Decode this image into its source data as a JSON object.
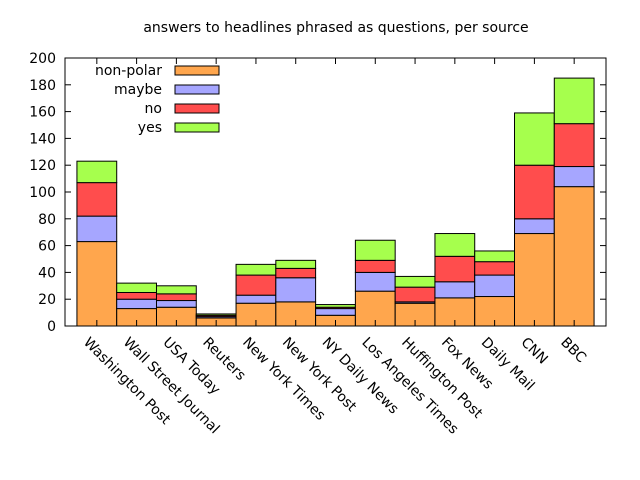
{
  "chart_data": {
    "type": "bar",
    "stacked": true,
    "title": "answers to headlines phrased as questions, per source",
    "xlabel": "",
    "ylabel": "",
    "ylim": [
      0,
      200
    ],
    "yticks": [
      0,
      20,
      40,
      60,
      80,
      100,
      120,
      140,
      160,
      180,
      200
    ],
    "grid": false,
    "legend_position": "top-left",
    "categories": [
      "Washington Post",
      "Wall Street Journal",
      "USA Today",
      "Reuters",
      "New York Times",
      "New York Post",
      "NY Daily News",
      "Los Angeles Times",
      "Huffington Post",
      "Fox News",
      "Daily Mail",
      "CNN",
      "BBC"
    ],
    "series": [
      {
        "name": "non-polar",
        "color": "#ffa64d",
        "values": [
          63,
          13,
          14,
          6,
          17,
          18,
          8,
          26,
          17,
          21,
          22,
          69,
          104
        ]
      },
      {
        "name": "maybe",
        "color": "#a6a6ff",
        "values": [
          19,
          7,
          5,
          1,
          6,
          18,
          5,
          14,
          1,
          12,
          16,
          11,
          15
        ]
      },
      {
        "name": "no",
        "color": "#ff4d4d",
        "values": [
          25,
          5,
          5,
          1,
          15,
          7,
          1,
          9,
          11,
          19,
          10,
          40,
          32
        ]
      },
      {
        "name": "yes",
        "color": "#a6ff4d",
        "values": [
          16,
          7,
          6,
          1,
          8,
          6,
          2,
          15,
          8,
          17,
          8,
          39,
          34
        ]
      }
    ]
  }
}
